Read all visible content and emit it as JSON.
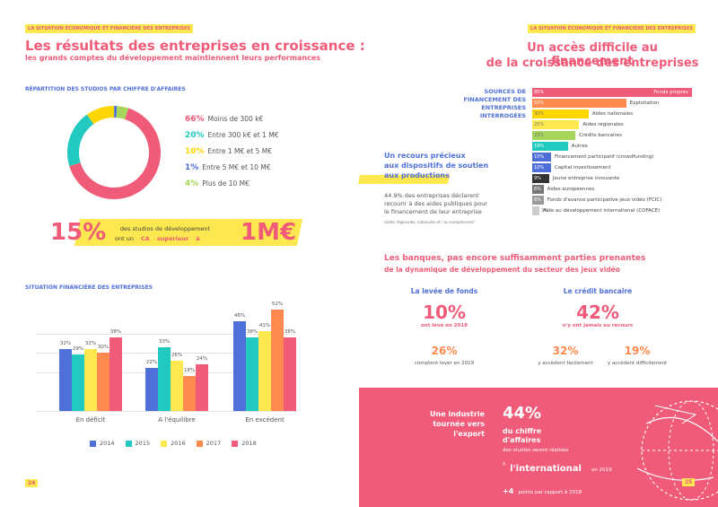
{
  "left": {
    "tag": "LA SITUATION ÉCONOMIQUE ET FINANCIÈRE DES ENTREPRISES",
    "title": "Les résultats des entreprises en croissance :",
    "subtitle": "les grands comptes du développement maintiennent leurs performances",
    "donut_heading": "RÉPARTITION DES STUDIOS PAR CHIFFRE D'AFFAIRES",
    "legend": [
      {
        "pct": "66%",
        "label": "Moins de 300 k€",
        "color": "#ef5b78"
      },
      {
        "pct": "20%",
        "label": "Entre 300 k€ et 1 M€",
        "color": "#21c9bf"
      },
      {
        "pct": "10%",
        "label": "Entre 1 M€ et 5 M€",
        "color": "#ffd600"
      },
      {
        "pct": "1%",
        "label": "Entre 5 M€ et 10 M€",
        "color": "#4f6fd9"
      },
      {
        "pct": "4%",
        "label": "Plus de 10 M€",
        "color": "#a5d65a"
      }
    ],
    "banner": {
      "big": "15%",
      "text1": "des studios de développement",
      "text2a": "ont un",
      "text2b": "CA",
      "text2c": "supérieur",
      "text2d": "à",
      "value": "1M€"
    },
    "bar_heading": "SITUATION FINANCIÈRE DES ENTREPRISES",
    "page": "24"
  },
  "chart_data": [
    {
      "type": "pie",
      "categories": [
        "Moins de 300 k€",
        "Entre 300 k€ et 1 M€",
        "Entre 1 M€ et 5 M€",
        "Entre 5 M€ et 10 M€",
        "Plus de 10 M€"
      ],
      "values": [
        66,
        20,
        10,
        1,
        4
      ],
      "title": "RÉPARTITION DES STUDIOS PAR CHIFFRE D'AFFAIRES"
    },
    {
      "type": "bar",
      "title": "SITUATION FINANCIÈRE DES ENTREPRISES",
      "categories": [
        "En déficit",
        "À l'équilibre",
        "En excédent"
      ],
      "series": [
        {
          "name": "2014",
          "values": [
            32,
            22,
            46
          ],
          "color": "#4f6fd9"
        },
        {
          "name": "2015",
          "values": [
            29,
            33,
            38
          ],
          "color": "#21c9bf"
        },
        {
          "name": "2016",
          "values": [
            32,
            26,
            41
          ],
          "color": "#fde84f"
        },
        {
          "name": "2017",
          "values": [
            30,
            18,
            52
          ],
          "color": "#ff8a4f"
        },
        {
          "name": "2018",
          "values": [
            38,
            24,
            38
          ],
          "color": "#ef5b78"
        }
      ],
      "ylim": [
        0,
        60
      ]
    },
    {
      "type": "bar",
      "title": "SOURCES DE FINANCEMENT DES ENTREPRISES INTERROGÉES",
      "categories": [
        "Fonds propres",
        "Exploitation",
        "Aides nationales",
        "Aides régionales",
        "Crédits bancaires",
        "Autres",
        "Financement participatif (crowdfunding)",
        "Capital investissement",
        "Jeune entreprise innovante",
        "Aides européennes",
        "Fonds d'avance participative jeux vidéo (FCIC)",
        "Aide au développement international (COFACE)"
      ],
      "values": [
        85,
        50,
        30,
        25,
        23,
        19,
        10,
        10,
        9,
        6,
        6,
        3
      ],
      "colors": [
        "#ef5b78",
        "#ff8a4f",
        "#ffd600",
        "#fde84f",
        "#a5d65a",
        "#21c9bf",
        "#4f6fd9",
        "#4f6fd9",
        "#333333",
        "#777777",
        "#999999",
        "#cccccc"
      ]
    }
  ],
  "right": {
    "tag": "LA SITUATION ÉCONOMIQUE ET FINANCIÈRE DES ENTREPRISES",
    "title1": "Un accès difficile au financement",
    "title2": "de la croissance des entreprises",
    "sources_label": [
      "SOURCES DE",
      "FINANCEMENT DES",
      "ENTREPRISES",
      "INTERROGÉES"
    ],
    "recours": [
      "Un recours précieux",
      "aux dispositifs de soutien",
      "aux productions"
    ],
    "recours_text": [
      "44.9% des entreprises déclarent",
      "recourir à des aides publiques pour",
      "le financement de leur entreprise"
    ],
    "recours_note": "(aides régionales, nationales et / ou européennes)",
    "banks_title": "Les banques, pas encore suffisamment parties prenantes",
    "banks_sub": "de la dynamique de développement du secteur des jeux vidéo",
    "levee": {
      "heading": "La levée de fonds",
      "big": "10%",
      "big_label": "ont levé en 2018",
      "second": "26%",
      "second_label": "comptent lever en 2019"
    },
    "credit": {
      "heading": "Le crédit bancaire",
      "big": "42%",
      "big_label": "n'y ont jamais eu recours",
      "a": "32%",
      "a_label": "y accèdent facilement",
      "b": "19%",
      "b_label": "y accèdent difficilement"
    },
    "export": {
      "lead": [
        "Une industrie",
        "tournée vers",
        "l'export"
      ],
      "big": "44%",
      "line1": "du chiffre",
      "line2": "d'affaires",
      "line3": "des studios seront réalisés",
      "sup": "à",
      "intl": "l'international",
      "year": "en 2019",
      "plus": "+4",
      "plus_text": "points par rapport à 2018"
    },
    "page": "25"
  }
}
